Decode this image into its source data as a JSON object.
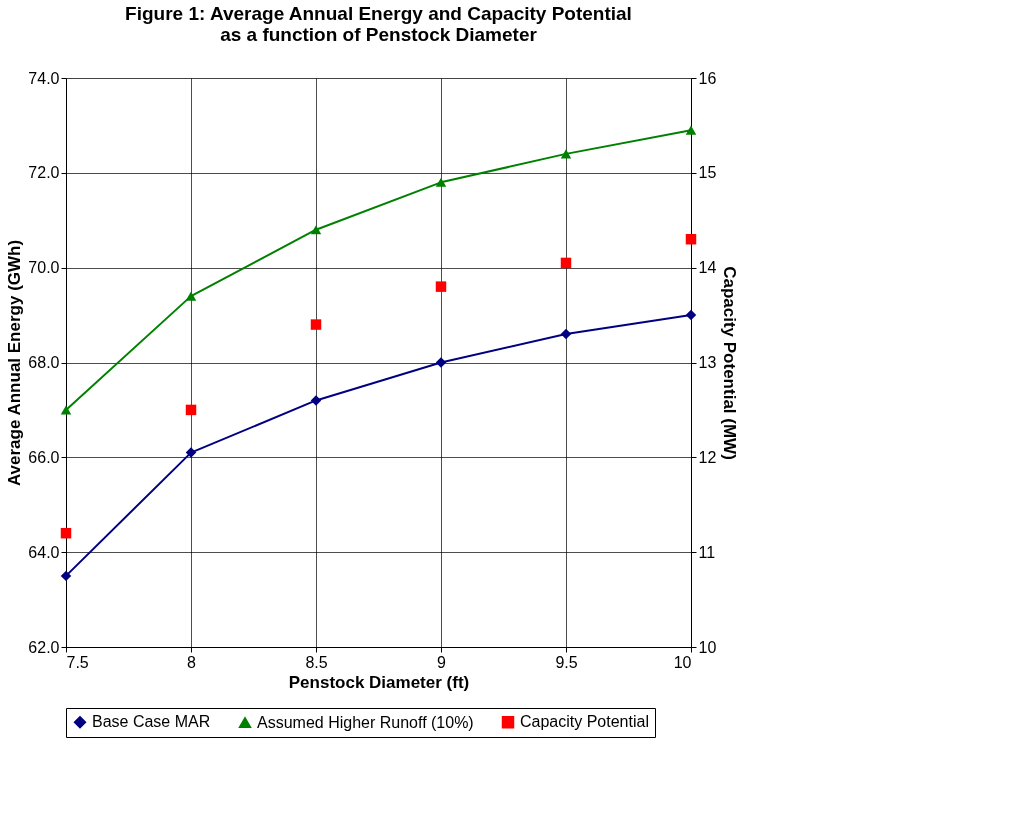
{
  "chart_data": {
    "type": "line",
    "title": "Figure 1: Average Annual Energy and Capacity Potential\nas a function of Penstock Diameter",
    "xlabel": "Penstock Diameter (ft)",
    "ylabel": "Average Annual Energy (GWh)",
    "y2label": "Capacity Potential (MW)",
    "x": [
      7.5,
      8,
      8.5,
      9,
      9.5,
      10
    ],
    "series": [
      {
        "name": "Base Case MAR",
        "color": "#000080",
        "marker": "diamond",
        "values": [
          63.5,
          66.1,
          67.2,
          68.0,
          68.6,
          69.0
        ]
      },
      {
        "name": "Assumed Higher Runoff (10%)",
        "color": "#008000",
        "marker": "triangle",
        "values": [
          67.0,
          69.4,
          70.8,
          71.8,
          72.4,
          72.9
        ]
      },
      {
        "name": "Capacity Potential",
        "type": "scatter",
        "axis": "y2",
        "color": "#ff0000",
        "marker": "square",
        "values": [
          11.2,
          12.5,
          13.4,
          13.8,
          14.05,
          14.3
        ]
      }
    ],
    "xlim": [
      7.5,
      10
    ],
    "xticks": [
      7.5,
      8,
      8.5,
      9,
      9.5,
      10
    ],
    "ylim": [
      62,
      74
    ],
    "yticks": [
      {
        "value": 62,
        "label": "62.0"
      },
      {
        "value": 64,
        "label": "64.0"
      },
      {
        "value": 66,
        "label": "66.0"
      },
      {
        "value": 68,
        "label": "68.0"
      },
      {
        "value": 70,
        "label": "70.0"
      },
      {
        "value": 72,
        "label": "72.0"
      },
      {
        "value": 74,
        "label": "74.0"
      }
    ],
    "y2lim": [
      10,
      16
    ],
    "y2ticks": [
      10,
      11,
      12,
      13,
      14,
      15,
      16
    ],
    "grid": true,
    "legend": "bottom"
  }
}
